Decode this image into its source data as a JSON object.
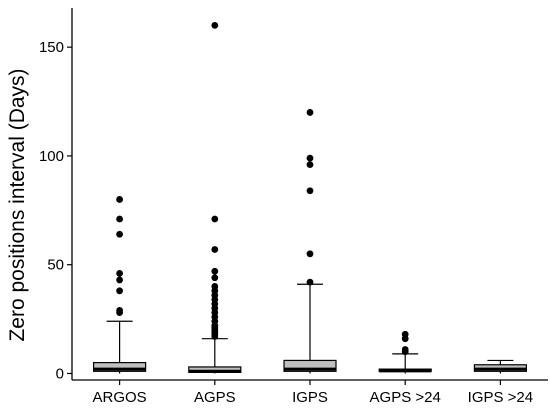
{
  "chart_data": {
    "type": "box",
    "ylabel": "Zero positions interval (Days)",
    "xlabel": "",
    "ylim": [
      -3,
      168
    ],
    "yticks": [
      0,
      50,
      100,
      150
    ],
    "grid": false,
    "categories": [
      "ARGOS",
      "AGPS",
      "IGPS",
      "AGPS >24",
      "IGPS >24"
    ],
    "boxes": [
      {
        "category": "ARGOS",
        "whisker_low": 0,
        "q1": 1,
        "median": 2,
        "q3": 5,
        "whisker_high": 24,
        "outliers": [
          28,
          29,
          38,
          43,
          46,
          64,
          71,
          80
        ]
      },
      {
        "category": "AGPS",
        "whisker_low": 0,
        "q1": 0.5,
        "median": 1,
        "q3": 3,
        "whisker_high": 16,
        "outliers": [
          17,
          18,
          19,
          20,
          21,
          22,
          24,
          26,
          28,
          30,
          32,
          34,
          36,
          38,
          40,
          44,
          47,
          57,
          71,
          160
        ]
      },
      {
        "category": "IGPS",
        "whisker_low": 0,
        "q1": 1,
        "median": 2,
        "q3": 6,
        "whisker_high": 41,
        "outliers": [
          42,
          55,
          84,
          96,
          99,
          120
        ]
      },
      {
        "category": "AGPS >24",
        "whisker_low": 0,
        "q1": 1,
        "median": 1.2,
        "q3": 2,
        "whisker_high": 9,
        "outliers": [
          10,
          11,
          16,
          18
        ]
      },
      {
        "category": "IGPS >24",
        "whisker_low": 0,
        "q1": 1,
        "median": 2,
        "q3": 4,
        "whisker_high": 6,
        "outliers": []
      }
    ],
    "colors": {
      "box_fill": "#bfbfbf",
      "stroke": "#000000"
    }
  }
}
